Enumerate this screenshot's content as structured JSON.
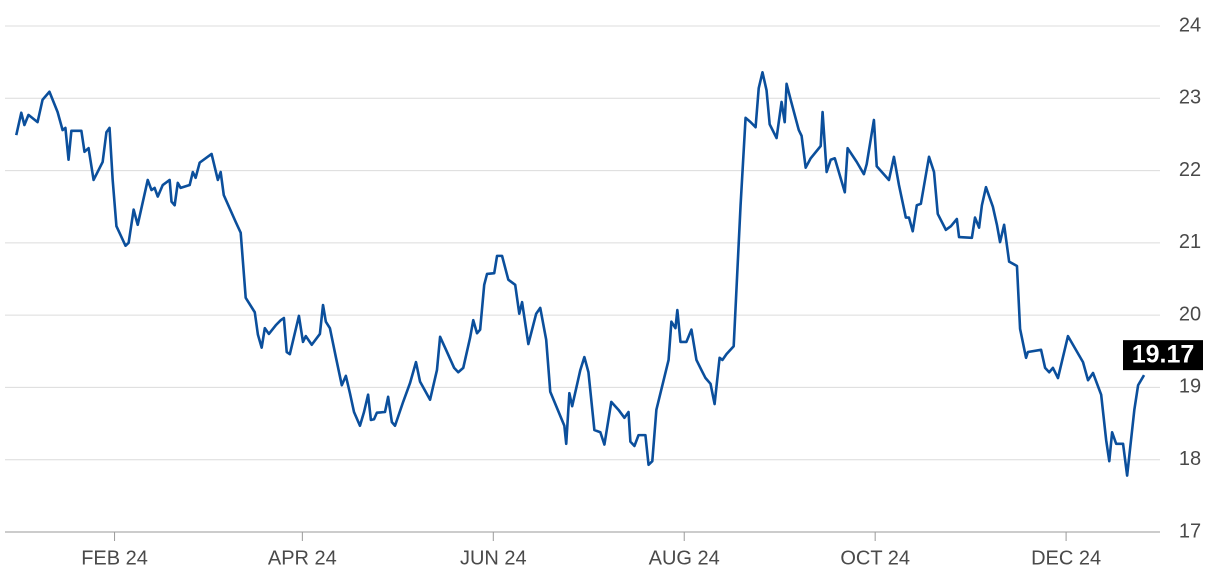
{
  "chart_data": {
    "type": "line",
    "color": "#0b4f9c",
    "grid": true,
    "xlim": [
      -3,
      366
    ],
    "ylim": [
      17,
      24
    ],
    "yticks": [
      17,
      18,
      19,
      20,
      21,
      22,
      23,
      24
    ],
    "xticks": [
      {
        "value": 32,
        "label": "FEB 24"
      },
      {
        "value": 92,
        "label": "APR 24"
      },
      {
        "value": 153,
        "label": "JUN 24"
      },
      {
        "value": 214,
        "label": "AUG 24"
      },
      {
        "value": 275,
        "label": "OCT 24"
      },
      {
        "value": 336,
        "label": "DEC 24"
      }
    ],
    "x": [
      0.6,
      2.2,
      3.2,
      4.5,
      7.4,
      9.0,
      11.2,
      13.8,
      15.4,
      16.3,
      17.3,
      18.2,
      21.4,
      22.4,
      23.7,
      25.3,
      28.2,
      29.4,
      30.4,
      31.4,
      32.6,
      35.5,
      36.5,
      38.1,
      39.4,
      42.6,
      43.8,
      44.8,
      45.8,
      47.4,
      49.6,
      50.2,
      51.2,
      52.2,
      53.1,
      56.0,
      57.0,
      57.9,
      59.2,
      63.0,
      65.0,
      65.9,
      66.9,
      70.7,
      72.3,
      73.9,
      76.8,
      77.8,
      79.0,
      80.0,
      81.3,
      83.5,
      85.1,
      86.1,
      87.0,
      88.0,
      90.9,
      92.2,
      93.1,
      95.0,
      97.6,
      98.6,
      99.5,
      100.8,
      102.7,
      104.6,
      105.9,
      107.2,
      108.5,
      110.4,
      111.7,
      113.0,
      113.9,
      114.9,
      115.8,
      118.4,
      119.4,
      120.6,
      121.6,
      124.2,
      126.4,
      128.3,
      129.6,
      132.8,
      135.0,
      136.0,
      137.9,
      140.5,
      141.8,
      143.4,
      145.6,
      146.6,
      147.8,
      148.8,
      150.1,
      151.0,
      153.3,
      154.2,
      155.8,
      157.8,
      160.0,
      161.3,
      162.2,
      164.2,
      166.7,
      168.0,
      169.9,
      171.2,
      175.7,
      176.3,
      177.3,
      178.2,
      180.8,
      182.1,
      183.4,
      185.3,
      187.2,
      188.5,
      190.7,
      193.0,
      194.9,
      196.2,
      196.8,
      198.1,
      199.4,
      201.6,
      202.6,
      203.8,
      205.1,
      209.0,
      209.9,
      211.2,
      211.8,
      212.8,
      214.7,
      216.3,
      217.9,
      219.5,
      220.8,
      222.4,
      223.7,
      225.3,
      226.2,
      227.5,
      229.8,
      232.0,
      233.6,
      235.2,
      236.8,
      237.8,
      239.0,
      240.3,
      241.3,
      243.5,
      245.1,
      246.1,
      246.7,
      248.0,
      250.6,
      251.5,
      252.8,
      254.4,
      257.6,
      258.2,
      259.5,
      260.8,
      262.1,
      265.3,
      266.2,
      269.1,
      271.4,
      272.3,
      274.6,
      275.5,
      279.4,
      281.0,
      282.6,
      284.8,
      285.8,
      287.0,
      288.3,
      289.6,
      292.2,
      293.8,
      295.0,
      297.6,
      299.2,
      301.1,
      301.8,
      305.9,
      306.9,
      308.2,
      309.1,
      310.4,
      312.6,
      313.9,
      314.9,
      316.2,
      317.8,
      320.3,
      321.3,
      323.2,
      323.8,
      328.0,
      329.3,
      330.6,
      331.8,
      333.4,
      336.6,
      340.2,
      341.4,
      343.0,
      344.6,
      347.2,
      348.8,
      349.8,
      350.7,
      352.0,
      354.2,
      355.5,
      357.8,
      359.0,
      360.9
    ],
    "series": [
      {
        "color": "#0b4f9c",
        "values": [
          22.49,
          22.8,
          22.63,
          22.77,
          22.67,
          22.98,
          23.09,
          22.81,
          22.56,
          22.59,
          22.15,
          22.55,
          22.55,
          22.26,
          22.31,
          21.87,
          22.12,
          22.53,
          22.59,
          21.87,
          21.23,
          20.96,
          21.0,
          21.46,
          21.25,
          21.87,
          21.73,
          21.76,
          21.64,
          21.8,
          21.87,
          21.57,
          21.52,
          21.83,
          21.76,
          21.8,
          21.98,
          21.9,
          22.11,
          22.23,
          21.87,
          21.98,
          21.66,
          21.29,
          21.14,
          20.24,
          20.04,
          19.73,
          19.55,
          19.82,
          19.74,
          19.86,
          19.93,
          19.96,
          19.49,
          19.46,
          19.99,
          19.63,
          19.71,
          19.59,
          19.74,
          20.14,
          19.91,
          19.82,
          19.42,
          19.03,
          19.16,
          18.92,
          18.66,
          18.47,
          18.66,
          18.9,
          18.55,
          18.56,
          18.65,
          18.66,
          18.87,
          18.52,
          18.47,
          18.8,
          19.06,
          19.35,
          19.08,
          18.83,
          19.24,
          19.7,
          19.52,
          19.27,
          19.21,
          19.27,
          19.69,
          19.93,
          19.75,
          19.8,
          20.42,
          20.57,
          20.58,
          20.82,
          20.82,
          20.49,
          20.42,
          20.02,
          20.18,
          19.6,
          20.02,
          20.1,
          19.66,
          18.94,
          18.47,
          18.22,
          18.92,
          18.74,
          19.24,
          19.42,
          19.21,
          18.41,
          18.38,
          18.21,
          18.8,
          18.69,
          18.58,
          18.66,
          18.25,
          18.19,
          18.34,
          18.34,
          17.93,
          17.98,
          18.69,
          19.38,
          19.91,
          19.82,
          20.07,
          19.63,
          19.63,
          19.8,
          19.38,
          19.24,
          19.13,
          19.05,
          18.77,
          19.41,
          19.38,
          19.46,
          19.57,
          21.52,
          22.73,
          22.67,
          22.6,
          23.14,
          23.36,
          23.11,
          22.64,
          22.45,
          22.95,
          22.67,
          23.2,
          22.98,
          22.56,
          22.48,
          22.04,
          22.17,
          22.34,
          22.81,
          21.98,
          22.15,
          22.17,
          21.7,
          22.31,
          22.12,
          21.95,
          22.09,
          22.7,
          22.06,
          21.87,
          22.19,
          21.8,
          21.35,
          21.35,
          21.16,
          21.52,
          21.54,
          22.19,
          21.98,
          21.4,
          21.18,
          21.23,
          21.33,
          21.08,
          21.07,
          21.35,
          21.21,
          21.52,
          21.77,
          21.5,
          21.25,
          21.01,
          21.25,
          20.74,
          20.68,
          19.81,
          19.41,
          19.49,
          19.52,
          19.27,
          19.21,
          19.27,
          19.13,
          19.71,
          19.44,
          19.35,
          19.1,
          19.2,
          18.9,
          18.27,
          17.98,
          18.38,
          18.22,
          18.22,
          17.78,
          18.69,
          19.03,
          19.17
        ]
      }
    ]
  }
}
